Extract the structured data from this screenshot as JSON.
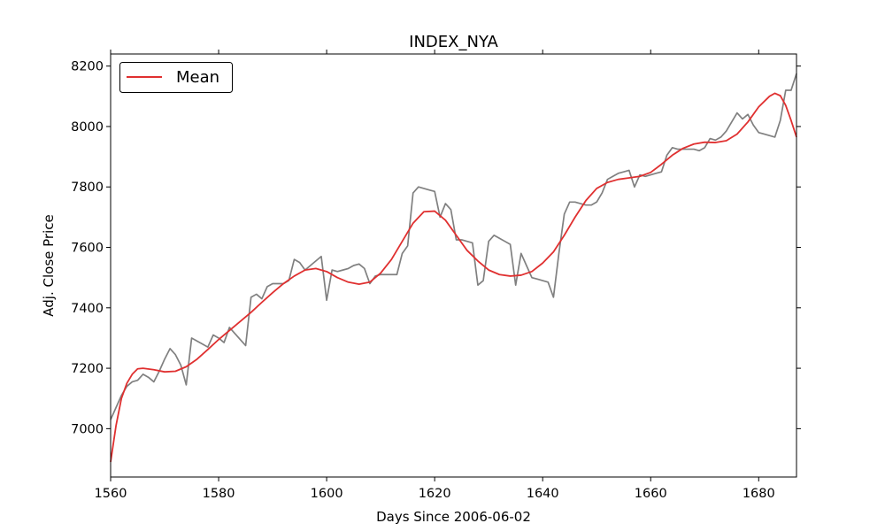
{
  "chart_data": {
    "type": "line",
    "title": "INDEX_NYA",
    "xlabel": "Days Since 2006-06-02",
    "ylabel": "Adj. Close Price",
    "xlim": [
      1560,
      1687
    ],
    "ylim": [
      6840,
      8240
    ],
    "xticks": [
      1560,
      1580,
      1600,
      1620,
      1640,
      1660,
      1680
    ],
    "yticks": [
      7000,
      7200,
      7400,
      7600,
      7800,
      8000,
      8200
    ],
    "grid": false,
    "legend": {
      "placement": "top-left",
      "entries": [
        "Mean"
      ]
    },
    "colors": {
      "series_price": "#808080",
      "series_mean": "#e03030"
    },
    "series": [
      {
        "key": "price",
        "x": [
          1560,
          1561,
          1562,
          1563,
          1564,
          1565,
          1566,
          1567,
          1568,
          1569,
          1570,
          1571,
          1572,
          1573,
          1574,
          1575,
          1576,
          1577,
          1578,
          1579,
          1580,
          1581,
          1582,
          1583,
          1584,
          1585,
          1586,
          1587,
          1588,
          1589,
          1590,
          1591,
          1592,
          1593,
          1594,
          1595,
          1596,
          1597,
          1598,
          1599,
          1600,
          1601,
          1602,
          1603,
          1604,
          1605,
          1606,
          1607,
          1608,
          1609,
          1610,
          1611,
          1612,
          1613,
          1614,
          1615,
          1616,
          1617,
          1618,
          1619,
          1620,
          1621,
          1622,
          1623,
          1624,
          1625,
          1626,
          1627,
          1628,
          1629,
          1630,
          1631,
          1632,
          1633,
          1634,
          1635,
          1636,
          1637,
          1638,
          1639,
          1640,
          1641,
          1642,
          1643,
          1644,
          1645,
          1646,
          1647,
          1648,
          1649,
          1650,
          1651,
          1652,
          1653,
          1654,
          1655,
          1656,
          1657,
          1658,
          1659,
          1660,
          1661,
          1662,
          1663,
          1664,
          1665,
          1666,
          1667,
          1668,
          1669,
          1670,
          1671,
          1672,
          1673,
          1674,
          1675,
          1676,
          1677,
          1678,
          1679,
          1680,
          1681,
          1682,
          1683,
          1684,
          1685,
          1686,
          1687
        ],
        "values": [
          7030,
          7070,
          7110,
          7140,
          7155,
          7160,
          7180,
          7170,
          7155,
          7190,
          7230,
          7265,
          7245,
          7210,
          7145,
          7300,
          7290,
          7280,
          7270,
          7310,
          7300,
          7285,
          7335,
          7315,
          7295,
          7275,
          7435,
          7445,
          7430,
          7470,
          7480,
          7480,
          7480,
          7490,
          7560,
          7550,
          7525,
          7540,
          7555,
          7570,
          7425,
          7525,
          7520,
          7525,
          7530,
          7540,
          7545,
          7530,
          7480,
          7505,
          7510,
          7510,
          7510,
          7510,
          7580,
          7605,
          7780,
          7800,
          7795,
          7790,
          7785,
          7700,
          7745,
          7725,
          7625,
          7625,
          7620,
          7615,
          7475,
          7490,
          7620,
          7640,
          7630,
          7620,
          7610,
          7475,
          7580,
          7540,
          7500,
          7495,
          7490,
          7485,
          7435,
          7580,
          7710,
          7750,
          7750,
          7745,
          7740,
          7740,
          7750,
          7780,
          7825,
          7835,
          7845,
          7850,
          7855,
          7800,
          7840,
          7835,
          7840,
          7845,
          7850,
          7905,
          7930,
          7925,
          7925,
          7925,
          7925,
          7920,
          7930,
          7960,
          7955,
          7965,
          7985,
          8015,
          8045,
          8025,
          8040,
          8005,
          7980,
          7975,
          7970,
          7965,
          8020,
          8120,
          8120,
          8175
        ]
      },
      {
        "key": "mean",
        "name": "Mean",
        "x": [
          1560,
          1561,
          1562,
          1563,
          1564,
          1565,
          1566,
          1568,
          1570,
          1572,
          1574,
          1576,
          1578,
          1580,
          1582,
          1584,
          1586,
          1588,
          1590,
          1592,
          1594,
          1596,
          1598,
          1600,
          1602,
          1604,
          1606,
          1608,
          1610,
          1612,
          1614,
          1616,
          1618,
          1620,
          1622,
          1624,
          1626,
          1628,
          1630,
          1632,
          1634,
          1636,
          1638,
          1640,
          1642,
          1644,
          1646,
          1648,
          1650,
          1652,
          1654,
          1656,
          1658,
          1660,
          1662,
          1664,
          1666,
          1668,
          1670,
          1672,
          1674,
          1676,
          1678,
          1680,
          1682,
          1683,
          1684,
          1685,
          1686,
          1687
        ],
        "values": [
          6890,
          7010,
          7100,
          7150,
          7180,
          7198,
          7200,
          7195,
          7188,
          7190,
          7205,
          7230,
          7262,
          7295,
          7325,
          7355,
          7385,
          7418,
          7450,
          7480,
          7505,
          7525,
          7530,
          7520,
          7500,
          7485,
          7478,
          7485,
          7515,
          7560,
          7620,
          7680,
          7718,
          7720,
          7690,
          7640,
          7590,
          7555,
          7525,
          7510,
          7505,
          7508,
          7520,
          7548,
          7585,
          7640,
          7700,
          7755,
          7795,
          7815,
          7825,
          7830,
          7835,
          7848,
          7875,
          7905,
          7928,
          7942,
          7948,
          7947,
          7953,
          7975,
          8015,
          8065,
          8100,
          8110,
          8102,
          8070,
          8020,
          7965
        ]
      }
    ]
  }
}
